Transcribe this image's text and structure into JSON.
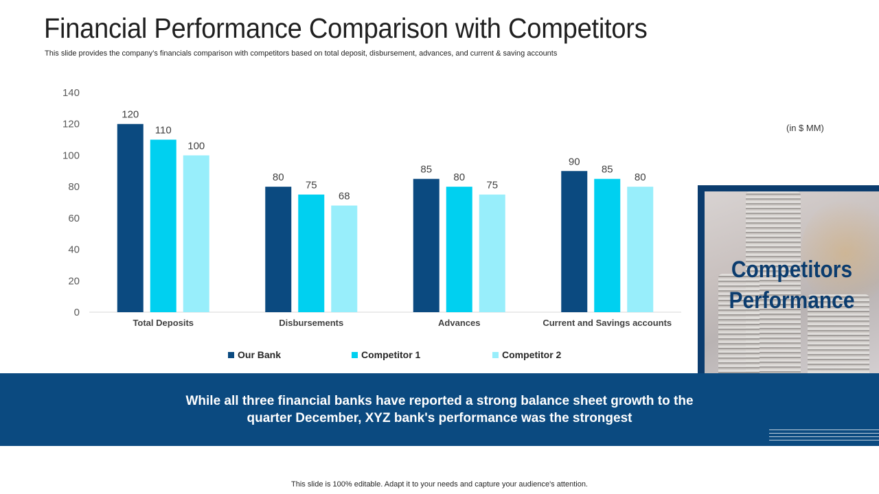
{
  "slide": {
    "title": "Financial Performance Comparison with Competitors",
    "subtitle": "This slide provides the company’s financials comparison with competitors based on total deposit, disbursement, advances, and current & saving accounts",
    "units": "(in $ MM)",
    "panel_line1": "Competitors",
    "panel_line2": "Performance",
    "banner_line1": "While all three financial banks have reported a strong balance sheet growth to the",
    "banner_line2": "quarter December, XYZ bank's performance was the strongest",
    "footer": "This slide is 100% editable. Adapt it to your needs and capture your audience's attention."
  },
  "colors": {
    "our_bank": "#0b4a80",
    "competitor_1": "#00d0f0",
    "competitor_2": "#98eefb",
    "banner": "#0b4a80",
    "panel_border": "#0b3c6e"
  },
  "chart_data": {
    "type": "bar",
    "title": "",
    "xlabel": "",
    "ylabel": "",
    "ylim": [
      0,
      140
    ],
    "yticks": [
      0,
      20,
      40,
      60,
      80,
      100,
      120,
      140
    ],
    "grid": false,
    "legend_position": "bottom",
    "categories": [
      "Total Deposits",
      "Disbursements",
      "Advances",
      "Current and Savings accounts"
    ],
    "series": [
      {
        "name": "Our Bank",
        "color": "#0b4a80",
        "values": [
          120,
          80,
          85,
          90
        ]
      },
      {
        "name": "Competitor 1",
        "color": "#00d0f0",
        "values": [
          110,
          75,
          80,
          85
        ]
      },
      {
        "name": "Competitor 2",
        "color": "#98eefb",
        "values": [
          100,
          68,
          75,
          80
        ]
      }
    ]
  }
}
